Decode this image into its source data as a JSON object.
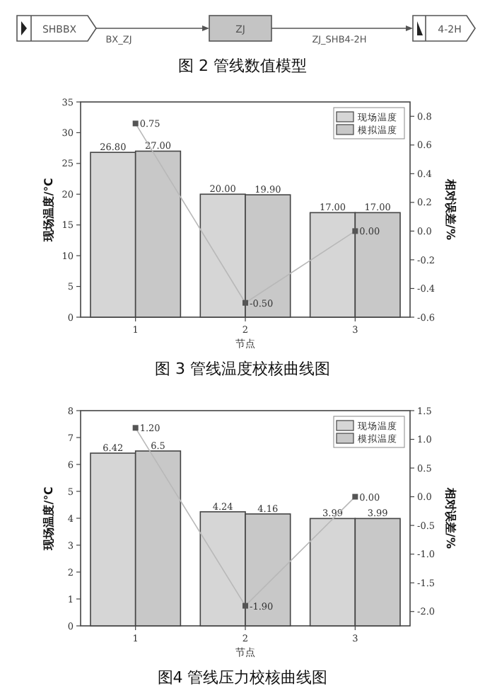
{
  "chart_data": [
    {
      "type": "other",
      "title": "图 2 管线数值模型",
      "annotations": [
        "SHBBX",
        "BX_ZJ",
        "ZJ",
        "ZJ_SHB4-2H",
        "4-2H"
      ]
    },
    {
      "type": "bar",
      "title": "图 3 管线温度校核曲线图",
      "xlabel": "节点",
      "ylabel": "现场温度/℃",
      "y2label": "相对误差/%",
      "categories": [
        "1",
        "2",
        "3"
      ],
      "ylim": [
        0,
        35
      ],
      "yticks": [
        0,
        5,
        10,
        15,
        20,
        25,
        30,
        35
      ],
      "y2lim": [
        -0.6,
        0.9
      ],
      "y2ticks": [
        {
          "value": -0.6,
          "label": "-0.6"
        },
        {
          "value": -0.4,
          "label": "-0.4"
        },
        {
          "value": -0.2,
          "label": "-0.2"
        },
        {
          "value": 0,
          "label": "0.0"
        },
        {
          "value": 0.2,
          "label": "0.2"
        },
        {
          "value": 0.4,
          "label": "0.4"
        },
        {
          "value": 0.6,
          "label": "0.6"
        },
        {
          "value": 0.8,
          "label": "0.8"
        }
      ],
      "legend": "top right",
      "grid": false,
      "series": [
        {
          "name": "现场温度",
          "color": "#d6d6d6",
          "values": [
            26.8,
            20.0,
            17.0
          ],
          "value_labels": [
            "26.80",
            "20.00",
            "17.00"
          ]
        },
        {
          "name": "模拟温度",
          "color": "#c8c8c8",
          "values": [
            27.0,
            19.9,
            17.0
          ],
          "value_labels": [
            "27.00",
            "19.90",
            "17.00"
          ]
        },
        {
          "type": "line",
          "axis": "y2",
          "color": "#b8b8b8",
          "marker": "square",
          "values": [
            0.75,
            -0.5,
            0.0
          ],
          "value_labels": [
            "0.75",
            "-0.50",
            "0.00"
          ]
        }
      ]
    },
    {
      "type": "bar",
      "title": "图4 管线压力校核曲线图",
      "xlabel": "节点",
      "ylabel": "现场温度/℃",
      "y2label": "相对误差/%",
      "categories": [
        "1",
        "2",
        "3"
      ],
      "ylim": [
        0,
        8
      ],
      "yticks": [
        0,
        1,
        2,
        3,
        4,
        5,
        6,
        7,
        8
      ],
      "y2lim": [
        -2.25,
        1.5
      ],
      "y2ticks": [
        {
          "value": -2,
          "label": "-2.0"
        },
        {
          "value": -1.5,
          "label": "-1.5"
        },
        {
          "value": -1,
          "label": "-1.0"
        },
        {
          "value": -0.5,
          "label": "-0.5"
        },
        {
          "value": 0,
          "label": "0.0"
        },
        {
          "value": 0.5,
          "label": "0.5"
        },
        {
          "value": 1,
          "label": "1.0"
        },
        {
          "value": 1.5,
          "label": "1.5"
        }
      ],
      "legend": "top right",
      "grid": false,
      "series": [
        {
          "name": "现场温度",
          "color": "#d6d6d6",
          "values": [
            6.42,
            4.24,
            3.99
          ],
          "value_labels": [
            "6.42",
            "4.24",
            "3.99"
          ]
        },
        {
          "name": "模拟温度",
          "color": "#c8c8c8",
          "values": [
            6.5,
            4.16,
            3.99
          ],
          "value_labels": [
            "6.5",
            "4.16",
            "3.99"
          ]
        },
        {
          "type": "line",
          "axis": "y2",
          "color": "#b8b8b8",
          "marker": "square",
          "values": [
            1.2,
            -1.9,
            0.0
          ],
          "value_labels": [
            "1.20",
            "-1.90",
            "0.00"
          ]
        }
      ]
    }
  ]
}
